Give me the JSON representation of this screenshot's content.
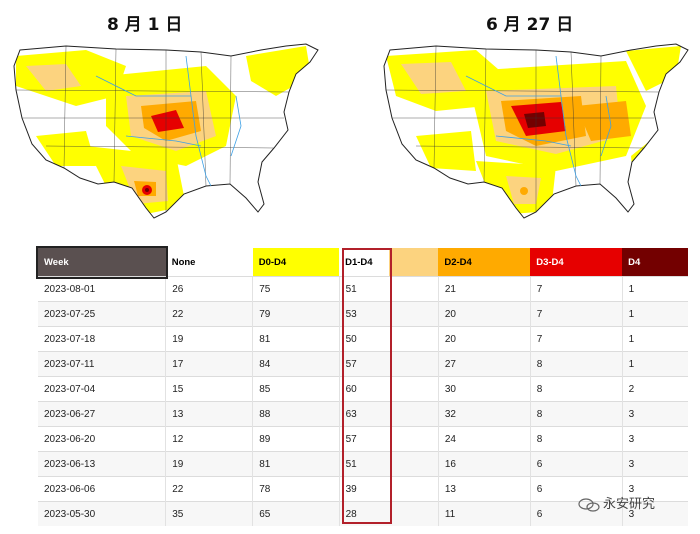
{
  "maps": {
    "left_title": "8 月 1 日",
    "right_title": "6 月 27 日"
  },
  "colors": {
    "none": "#ffffff",
    "D0": "#ffff00",
    "D1": "#fcd37f",
    "D2": "#ffaa00",
    "D3": "#e60000",
    "D4": "#730000",
    "week_header": "#5a5050",
    "highlight": "#b2202a"
  },
  "chart_data": {
    "type": "table",
    "columns": [
      "Week",
      "None",
      "D0-D4",
      "D1-D4",
      "D2-D4",
      "D3-D4",
      "D4"
    ],
    "rows": [
      [
        "2023-08-01",
        26,
        75,
        51,
        21,
        7,
        1
      ],
      [
        "2023-07-25",
        22,
        79,
        53,
        20,
        7,
        1
      ],
      [
        "2023-07-18",
        19,
        81,
        50,
        20,
        7,
        1
      ],
      [
        "2023-07-11",
        17,
        84,
        57,
        27,
        8,
        1
      ],
      [
        "2023-07-04",
        15,
        85,
        60,
        30,
        8,
        2
      ],
      [
        "2023-06-27",
        13,
        88,
        63,
        32,
        8,
        3
      ],
      [
        "2023-06-20",
        12,
        89,
        57,
        24,
        8,
        3
      ],
      [
        "2023-06-13",
        19,
        81,
        51,
        16,
        6,
        3
      ],
      [
        "2023-06-06",
        22,
        78,
        39,
        13,
        6,
        3
      ],
      [
        "2023-05-30",
        35,
        65,
        28,
        11,
        6,
        3
      ]
    ],
    "highlighted_column": "D1-D4"
  },
  "watermark": {
    "text": "永安研究"
  }
}
